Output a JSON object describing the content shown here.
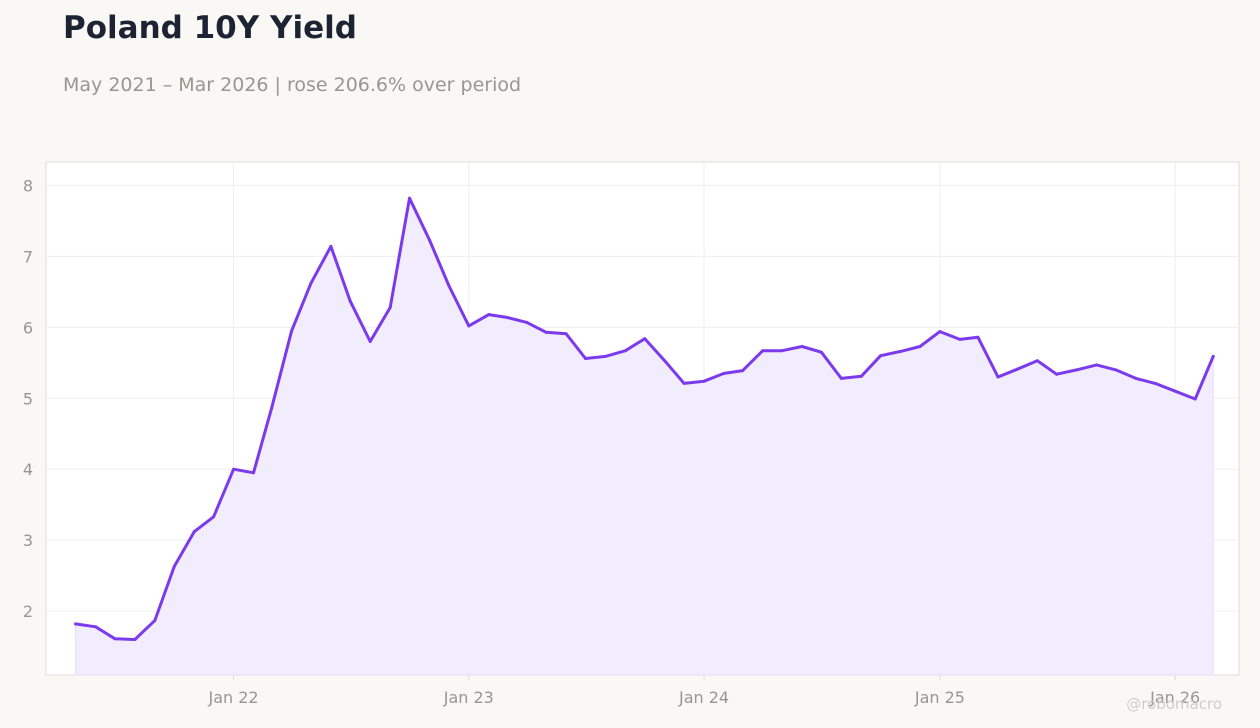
{
  "header": {
    "title": "Poland 10Y Yield",
    "subtitle": "May 2021 – Mar 2026 | rose 206.6% over period"
  },
  "watermark": "@robomacro",
  "colors": {
    "line": "#7c3aed",
    "fill": "#f2edfd",
    "grid": "#efedf2",
    "frame": "#dedcd6",
    "tick_text": "#999690",
    "background": "#f9f8f5",
    "plot_background": "#ffffff"
  },
  "chart_data": {
    "type": "area",
    "title": "Poland 10Y Yield",
    "subtitle": "May 2021 – Mar 2026 | rose 206.6% over period",
    "xlabel": "",
    "ylabel": "",
    "ylim": [
      1.1,
      8.33
    ],
    "xlim": [
      "2021-03-16",
      "2026-04-10"
    ],
    "grid": true,
    "y_ticks": [
      2,
      3,
      4,
      5,
      6,
      7,
      8
    ],
    "x_ticks": [
      {
        "date": "2022-01-01",
        "label": "Jan 22"
      },
      {
        "date": "2023-01-01",
        "label": "Jan 23"
      },
      {
        "date": "2024-01-01",
        "label": "Jan 24"
      },
      {
        "date": "2025-01-01",
        "label": "Jan 25"
      },
      {
        "date": "2026-01-01",
        "label": "Jan 26"
      }
    ],
    "series": [
      {
        "x": [
          "2021-05-01",
          "2021-06-01",
          "2021-07-01",
          "2021-08-01",
          "2021-09-01",
          "2021-10-01",
          "2021-11-01",
          "2021-12-01",
          "2022-01-01",
          "2022-02-01",
          "2022-03-01",
          "2022-04-01",
          "2022-05-01",
          "2022-06-01",
          "2022-07-01",
          "2022-08-01",
          "2022-09-01",
          "2022-10-01",
          "2022-11-01",
          "2022-12-01",
          "2023-01-01",
          "2023-02-01",
          "2023-03-01",
          "2023-04-01",
          "2023-05-01",
          "2023-06-01",
          "2023-07-01",
          "2023-08-01",
          "2023-09-01",
          "2023-10-01",
          "2023-11-01",
          "2023-12-01",
          "2024-01-01",
          "2024-02-01",
          "2024-03-01",
          "2024-04-01",
          "2024-05-01",
          "2024-06-01",
          "2024-07-01",
          "2024-08-01",
          "2024-09-01",
          "2024-10-01",
          "2024-11-01",
          "2024-12-01",
          "2025-01-01",
          "2025-02-01",
          "2025-03-01",
          "2025-04-01",
          "2025-05-01",
          "2025-06-01",
          "2025-07-01",
          "2025-08-01",
          "2025-09-01",
          "2025-10-01",
          "2025-11-01",
          "2025-12-01",
          "2026-01-01",
          "2026-02-01",
          "2026-03-01"
        ],
        "values": [
          1.82,
          1.78,
          1.61,
          1.6,
          1.87,
          2.63,
          3.12,
          3.33,
          4.0,
          3.95,
          4.86,
          5.95,
          6.62,
          7.14,
          6.37,
          5.8,
          6.28,
          7.82,
          7.23,
          6.59,
          6.02,
          6.18,
          6.14,
          6.07,
          5.93,
          5.91,
          5.56,
          5.59,
          5.67,
          5.84,
          5.53,
          5.21,
          5.24,
          5.35,
          5.39,
          5.67,
          5.67,
          5.73,
          5.65,
          5.28,
          5.31,
          5.6,
          5.66,
          5.73,
          5.94,
          5.83,
          5.86,
          5.3,
          5.41,
          5.53,
          5.34,
          5.4,
          5.47,
          5.4,
          5.28,
          5.21,
          5.1,
          4.99,
          5.59
        ]
      }
    ]
  }
}
